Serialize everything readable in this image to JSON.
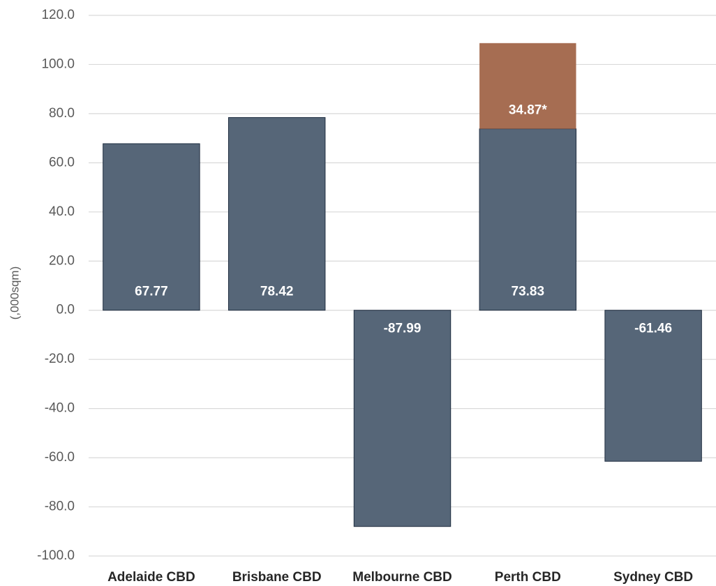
{
  "chart_data": {
    "type": "bar",
    "stacked": true,
    "y_label": "(,000sqm)",
    "categories": [
      "Adelaide CBD",
      "Brisbane CBD",
      "Melbourne CBD",
      "Perth CBD",
      "Sydney CBD"
    ],
    "series": [
      {
        "color": "#566678",
        "values": [
          67.77,
          78.42,
          -87.99,
          73.83,
          -61.46
        ]
      },
      {
        "color": "#a66d52",
        "values": [
          null,
          null,
          null,
          34.87,
          null
        ],
        "value_labels": [
          null,
          null,
          null,
          "34.87*",
          null
        ]
      }
    ],
    "ylim": [
      -100,
      120
    ],
    "yticks": [
      {
        "value": -100,
        "label": "-100.0"
      },
      {
        "value": -80,
        "label": "-80.0"
      },
      {
        "value": -60,
        "label": "-60.0"
      },
      {
        "value": -40,
        "label": "-40.0"
      },
      {
        "value": -20,
        "label": "-20.0"
      },
      {
        "value": 0,
        "label": "0.0"
      },
      {
        "value": 20,
        "label": "20.0"
      },
      {
        "value": 40,
        "label": "40.0"
      },
      {
        "value": 60,
        "label": "60.0"
      },
      {
        "value": 80,
        "label": "80.0"
      },
      {
        "value": 100,
        "label": "100.0"
      },
      {
        "value": 120,
        "label": "120.0"
      }
    ],
    "grid": true
  }
}
